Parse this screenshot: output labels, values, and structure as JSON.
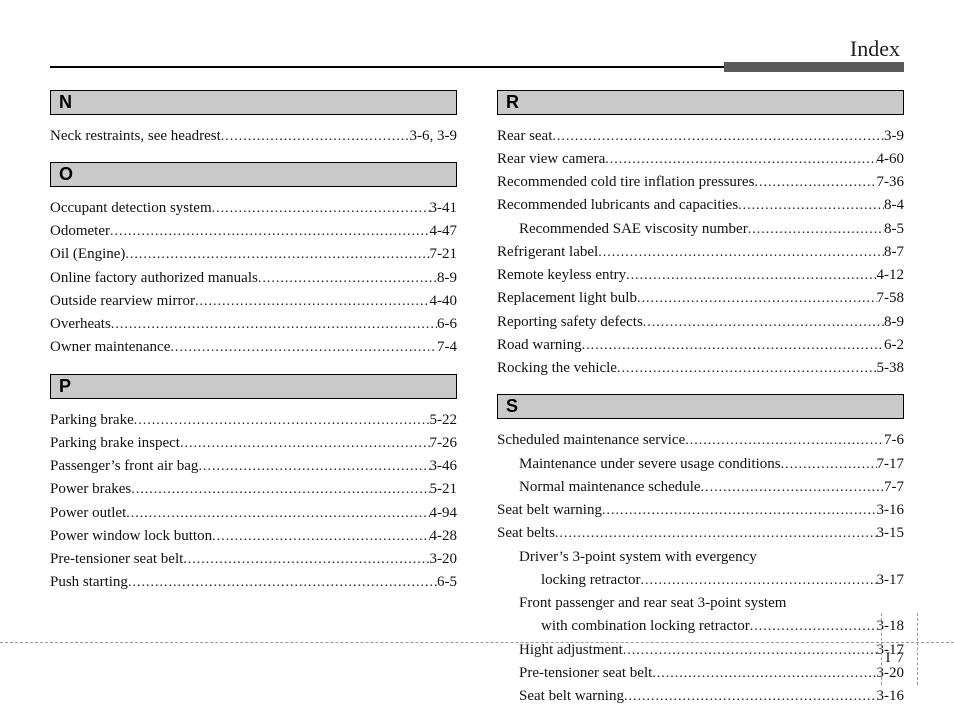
{
  "header": {
    "title": "Index"
  },
  "footer": {
    "section_letter": "I",
    "page_number": "7"
  },
  "left": {
    "sections": [
      {
        "letter": "N",
        "entries": [
          {
            "label": "Neck restraints, see headrest",
            "page": "3-6, 3-9"
          }
        ]
      },
      {
        "letter": "O",
        "entries": [
          {
            "label": "Occupant detection system",
            "page": "3-41"
          },
          {
            "label": "Odometer ",
            "page": "4-47"
          },
          {
            "label": "Oil (Engine) ",
            "page": "7-21"
          },
          {
            "label": "Online factory authorized manuals ",
            "page": "8-9"
          },
          {
            "label": "Outside rearview mirror ",
            "page": "4-40"
          },
          {
            "label": "Overheats ",
            "page": "6-6"
          },
          {
            "label": "Owner maintenance ",
            "page": "7-4"
          }
        ]
      },
      {
        "letter": "P",
        "entries": [
          {
            "label": "Parking brake ",
            "page": "5-22"
          },
          {
            "label": "Parking brake inspect ",
            "page": "7-26"
          },
          {
            "label": "Passenger’s front air bag ",
            "page": "3-46"
          },
          {
            "label": "Power brakes ",
            "page": "5-21"
          },
          {
            "label": "Power outlet ",
            "page": "4-94"
          },
          {
            "label": "Power window lock button",
            "page": "4-28"
          },
          {
            "label": "Pre-tensioner seat belt ",
            "page": "3-20"
          },
          {
            "label": "Push starting",
            "page": "6-5"
          }
        ]
      }
    ]
  },
  "right": {
    "sections": [
      {
        "letter": "R",
        "entries": [
          {
            "label": "Rear seat",
            "page": "3-9"
          },
          {
            "label": "Rear view camera",
            "page": "4-60"
          },
          {
            "label": "Recommended cold tire inflation pressures",
            "page": "7-36"
          },
          {
            "label": "Recommended lubricants and capacities ",
            "page": "8-4"
          },
          {
            "label": "Recommended SAE viscosity number",
            "page": "8-5",
            "sub": true
          },
          {
            "label": "Refrigerant label",
            "page": "8-7"
          },
          {
            "label": "Remote keyless entry ",
            "page": "4-12"
          },
          {
            "label": "Replacement light bulb ",
            "page": "7-58"
          },
          {
            "label": "Reporting safety defects ",
            "page": "8-9"
          },
          {
            "label": "Road warning ",
            "page": "6-2"
          },
          {
            "label": "Rocking the vehicle ",
            "page": "5-38"
          }
        ]
      },
      {
        "letter": "S",
        "entries": [
          {
            "label": "Scheduled maintenance service ",
            "page": "7-6"
          },
          {
            "label": "Maintenance under severe usage conditions ",
            "page": "7-17",
            "sub": true
          },
          {
            "label": "Normal maintenance schedule ",
            "page": "7-7",
            "sub": true
          },
          {
            "label": "Seat belt warning ",
            "page": "3-16"
          },
          {
            "label": "Seat belts ",
            "page": "3-15"
          },
          {
            "label": "Driver’s 3-point system with evergency",
            "sub": true,
            "noref": true
          },
          {
            "label": "locking retractor ",
            "page": "3-17",
            "sub": true,
            "cont": true
          },
          {
            "label": "Front passenger and rear seat 3-point system",
            "sub": true,
            "noref": true
          },
          {
            "label": "with combination locking retractor",
            "page": "3-18",
            "sub": true,
            "cont": true
          },
          {
            "label": "Hight adjustment ",
            "page": "3-17",
            "sub": true
          },
          {
            "label": "Pre-tensioner seat belt ",
            "page": "3-20",
            "sub": true
          },
          {
            "label": "Seat belt warning ",
            "page": "3-16",
            "sub": true
          }
        ]
      }
    ]
  }
}
